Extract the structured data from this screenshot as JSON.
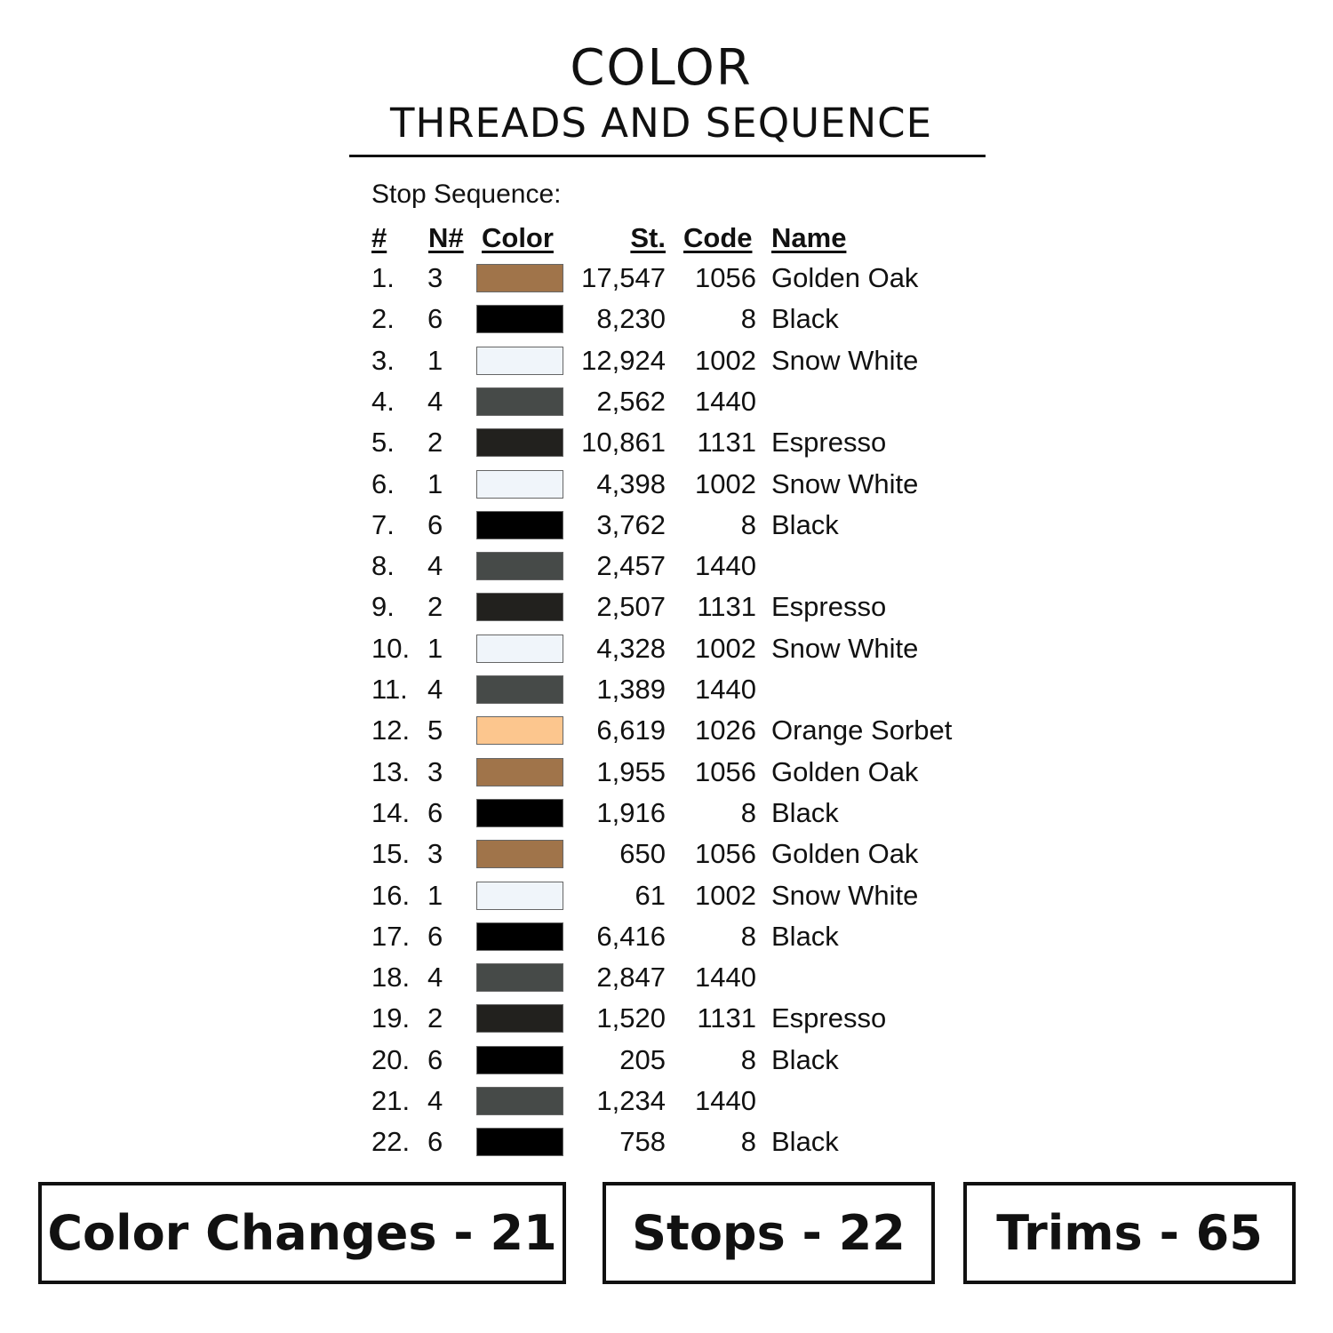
{
  "title": "COLOR",
  "subtitle": "THREADS AND SEQUENCE",
  "section_label": "Stop Sequence:",
  "headers": {
    "num": "#",
    "n": "N#",
    "color": "Color",
    "st": "St.",
    "code": "Code",
    "name": "Name"
  },
  "rows": [
    {
      "num": "1.",
      "n": "3",
      "color": "#a0744a",
      "st": "17,547",
      "code": "1056",
      "name": "Golden Oak"
    },
    {
      "num": "2.",
      "n": "6",
      "color": "#000000",
      "st": "8,230",
      "code": "8",
      "name": "Black"
    },
    {
      "num": "3.",
      "n": "1",
      "color": "#f0f5fa",
      "st": "12,924",
      "code": "1002",
      "name": "Snow White"
    },
    {
      "num": "4.",
      "n": "4",
      "color": "#464a48",
      "st": "2,562",
      "code": "1440",
      "name": ""
    },
    {
      "num": "5.",
      "n": "2",
      "color": "#22211e",
      "st": "10,861",
      "code": "1131",
      "name": "Espresso"
    },
    {
      "num": "6.",
      "n": "1",
      "color": "#f0f5fa",
      "st": "4,398",
      "code": "1002",
      "name": "Snow White"
    },
    {
      "num": "7.",
      "n": "6",
      "color": "#000000",
      "st": "3,762",
      "code": "8",
      "name": "Black"
    },
    {
      "num": "8.",
      "n": "4",
      "color": "#464a48",
      "st": "2,457",
      "code": "1440",
      "name": ""
    },
    {
      "num": "9.",
      "n": "2",
      "color": "#22211e",
      "st": "2,507",
      "code": "1131",
      "name": "Espresso"
    },
    {
      "num": "10.",
      "n": "1",
      "color": "#f0f5fa",
      "st": "4,328",
      "code": "1002",
      "name": "Snow White"
    },
    {
      "num": "11.",
      "n": "4",
      "color": "#464a48",
      "st": "1,389",
      "code": "1440",
      "name": ""
    },
    {
      "num": "12.",
      "n": "5",
      "color": "#fcc68e",
      "st": "6,619",
      "code": "1026",
      "name": "Orange Sorbet"
    },
    {
      "num": "13.",
      "n": "3",
      "color": "#a0744a",
      "st": "1,955",
      "code": "1056",
      "name": "Golden Oak"
    },
    {
      "num": "14.",
      "n": "6",
      "color": "#000000",
      "st": "1,916",
      "code": "8",
      "name": "Black"
    },
    {
      "num": "15.",
      "n": "3",
      "color": "#a0744a",
      "st": "650",
      "code": "1056",
      "name": "Golden Oak"
    },
    {
      "num": "16.",
      "n": "1",
      "color": "#f0f5fa",
      "st": "61",
      "code": "1002",
      "name": "Snow White"
    },
    {
      "num": "17.",
      "n": "6",
      "color": "#000000",
      "st": "6,416",
      "code": "8",
      "name": "Black"
    },
    {
      "num": "18.",
      "n": "4",
      "color": "#464a48",
      "st": "2,847",
      "code": "1440",
      "name": ""
    },
    {
      "num": "19.",
      "n": "2",
      "color": "#22211e",
      "st": "1,520",
      "code": "1131",
      "name": "Espresso"
    },
    {
      "num": "20.",
      "n": "6",
      "color": "#000000",
      "st": "205",
      "code": "8",
      "name": "Black"
    },
    {
      "num": "21.",
      "n": "4",
      "color": "#464a48",
      "st": "1,234",
      "code": "1440",
      "name": ""
    },
    {
      "num": "22.",
      "n": "6",
      "color": "#000000",
      "st": "758",
      "code": "8",
      "name": "Black"
    }
  ],
  "summary": {
    "color_changes": "Color Changes - 21",
    "stops": "Stops - 22",
    "trims": "Trims - 65"
  }
}
